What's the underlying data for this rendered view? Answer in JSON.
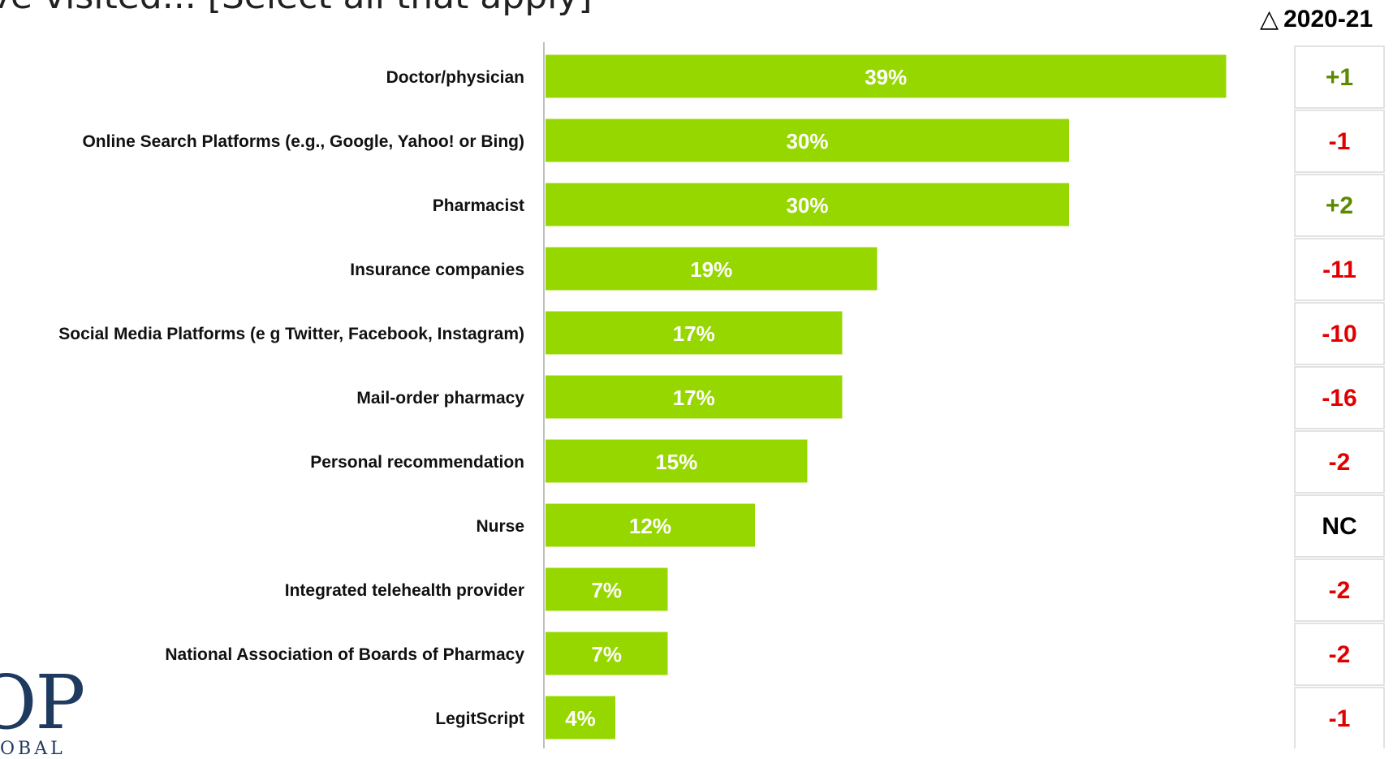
{
  "title": "ave visited... [Select all that apply]",
  "delta_header": {
    "symbol": "△",
    "label": "2020-21"
  },
  "logo": {
    "text": "OP",
    "sub": "OBAL"
  },
  "colors": {
    "bar": "#97d700",
    "pos": "#5a8a00",
    "neg": "#e00000",
    "neutral": "#000000",
    "axis": "#bfbfbf",
    "box": "#d9d9d9"
  },
  "chart_data": {
    "type": "bar",
    "orientation": "horizontal",
    "categories": [
      "Doctor/physician",
      "Online Search Platforms (e.g., Google, Yahoo! or Bing)",
      "Pharmacist",
      "Insurance companies",
      "Social Media Platforms (e g  Twitter, Facebook, Instagram)",
      "Mail-order pharmacy",
      "Personal recommendation",
      "Nurse",
      "Integrated telehealth provider",
      "National Association of Boards of Pharmacy",
      "LegitScript"
    ],
    "values": [
      39,
      30,
      30,
      19,
      17,
      17,
      15,
      12,
      7,
      7,
      4
    ],
    "data_labels": [
      "39%",
      "30%",
      "30%",
      "19%",
      "17%",
      "17%",
      "15%",
      "12%",
      "7%",
      "7%",
      "4%"
    ],
    "change_2020_21": [
      "+1",
      "-1",
      "+2",
      "-11",
      "-10",
      "-16",
      "-2",
      "NC",
      "-2",
      "-2",
      "-1"
    ],
    "change_colors": [
      "pos",
      "neg",
      "pos",
      "neg",
      "neg",
      "neg",
      "neg",
      "neutral",
      "neg",
      "neg",
      "neg"
    ],
    "xlim": [
      0,
      45
    ],
    "grid": false,
    "legend": "none"
  }
}
